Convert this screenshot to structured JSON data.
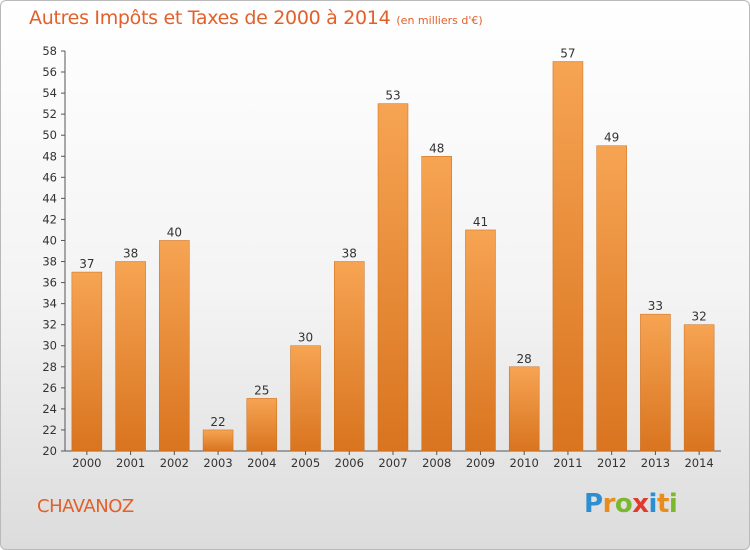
{
  "header": {
    "title": "Autres Impôts et Taxes de 2000 à 2014",
    "unit": "(en milliers d'€)"
  },
  "footer": {
    "city": "CHAVANOZ",
    "logo": [
      "P",
      "r",
      "o",
      "x",
      "i",
      "t",
      "i"
    ]
  },
  "colors": {
    "accent": "#e2602a",
    "bar_top": "#f6a453",
    "bar_bottom": "#d9741f"
  },
  "chart_data": {
    "type": "bar",
    "title": "Autres Impôts et Taxes de 2000 à 2014",
    "subtitle": "(en milliers d'€)",
    "xlabel": "",
    "ylabel": "",
    "categories": [
      "2000",
      "2001",
      "2002",
      "2003",
      "2004",
      "2005",
      "2006",
      "2007",
      "2008",
      "2009",
      "2010",
      "2011",
      "2012",
      "2013",
      "2014"
    ],
    "values": [
      37,
      38,
      40,
      22,
      25,
      30,
      38,
      53,
      48,
      41,
      28,
      57,
      49,
      33,
      32
    ],
    "ylim": [
      20,
      58
    ],
    "ytick_step": 2,
    "grid": false,
    "legend": "none"
  }
}
